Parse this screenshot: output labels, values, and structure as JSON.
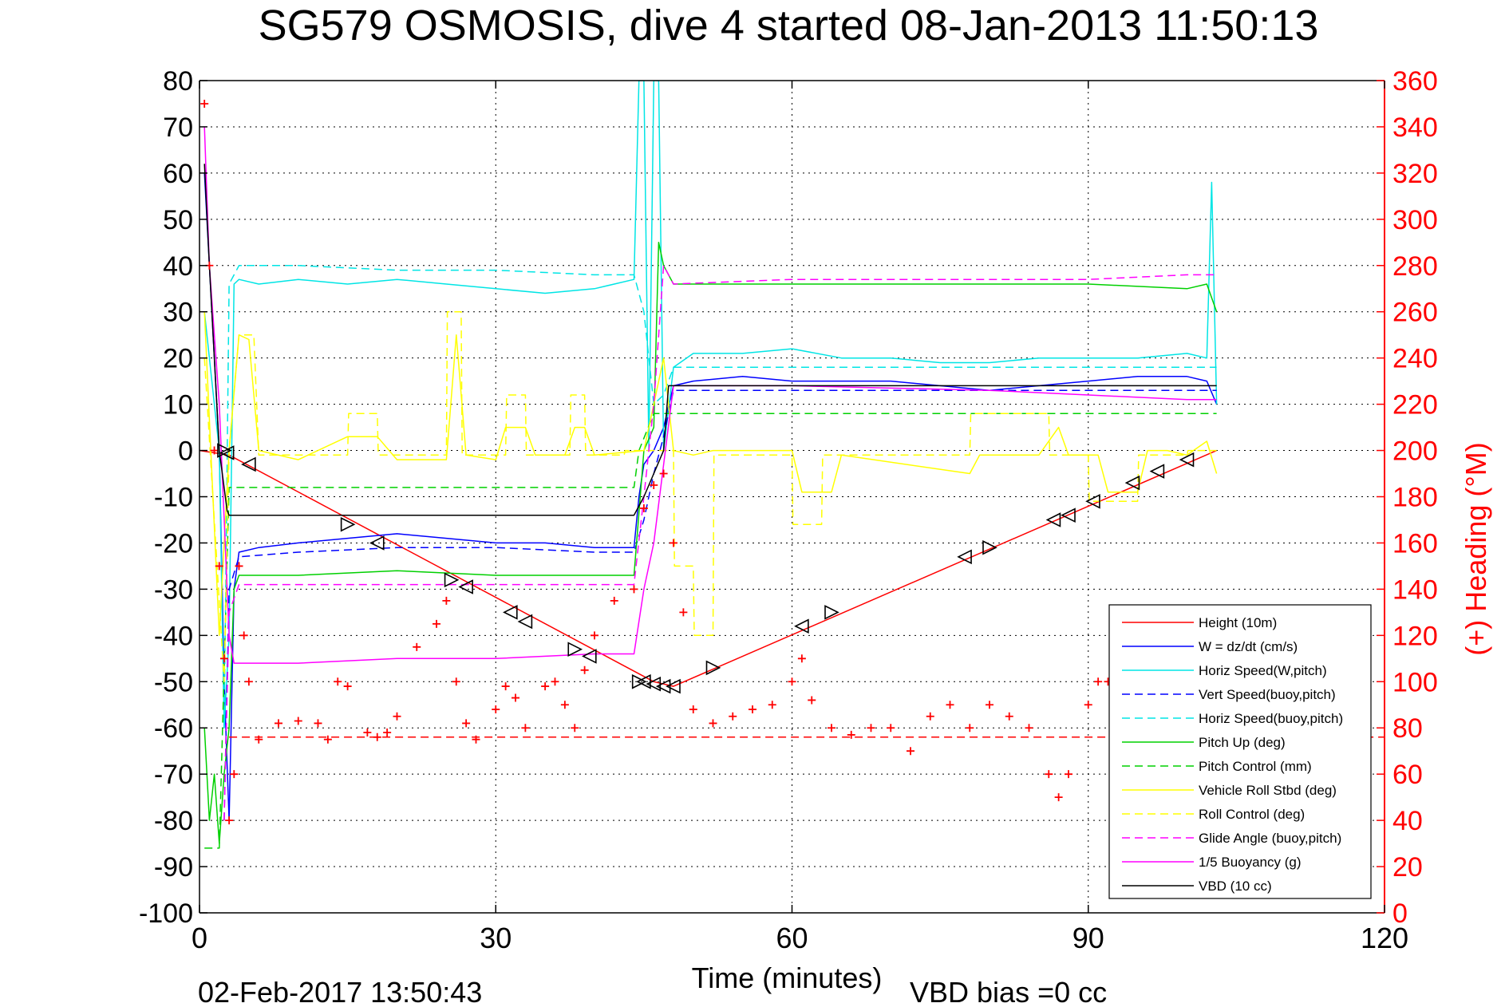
{
  "header": {
    "title": "SG579 OSMOSIS, dive 4 started 08-Jan-2013 11:50:13"
  },
  "footer": {
    "timestamp": "02-Feb-2017 13:50:43",
    "vbd_bias": "VBD bias =0 cc"
  },
  "chart_data": {
    "type": "line",
    "title": "SG579 OSMOSIS, dive 4 started 08-Jan-2013 11:50:13",
    "xlabel": "Time (minutes)",
    "ylabel": "",
    "y2label": "(+) Heading (°M)",
    "xlim": [
      0,
      120
    ],
    "ylim": [
      -100,
      80
    ],
    "y2lim": [
      0,
      360
    ],
    "xticks": [
      "0",
      "30",
      "60",
      "90",
      "120"
    ],
    "yticks": [
      "80",
      "70",
      "60",
      "50",
      "40",
      "30",
      "20",
      "10",
      "0",
      "-10",
      "-20",
      "-30",
      "-40",
      "-50",
      "-60",
      "-70",
      "-80",
      "-90",
      "-100"
    ],
    "y2ticks": [
      "360",
      "340",
      "320",
      "300",
      "280",
      "260",
      "240",
      "220",
      "200",
      "180",
      "160",
      "140",
      "120",
      "100",
      "80",
      "60",
      "40",
      "20",
      "0"
    ],
    "grid": true,
    "legend_position": "bottom-right",
    "colors": {
      "red": "#ff0000",
      "blue": "#0000ff",
      "cyan": "#00e5e5",
      "green": "#00d000",
      "yellow": "#ffff00",
      "magenta": "#ff00ff",
      "black": "#000000"
    },
    "series": [
      {
        "name": "Height (10m)",
        "color": "#ff0000",
        "dash": "solid",
        "axis": "left",
        "x": [
          0,
          3,
          46,
          48,
          103
        ],
        "y": [
          0,
          -1,
          -50,
          -51,
          0
        ]
      },
      {
        "name": "W = dz/dt (cm/s)",
        "color": "#0000ff",
        "dash": "solid",
        "axis": "left",
        "x": [
          0.5,
          1,
          1.5,
          2,
          2.5,
          3,
          3.5,
          4,
          6,
          10,
          15,
          20,
          25,
          30,
          35,
          40,
          44,
          44.5,
          45,
          46,
          47,
          48,
          50,
          55,
          60,
          65,
          70,
          75,
          80,
          85,
          90,
          95,
          100,
          102,
          103
        ],
        "y": [
          60,
          40,
          20,
          0,
          -50,
          -80,
          -30,
          -22,
          -21,
          -20,
          -19,
          -18,
          -19,
          -20,
          -20,
          -21,
          -21,
          -10,
          -3,
          0,
          5,
          14,
          15,
          16,
          15,
          15,
          15,
          14,
          13,
          14,
          15,
          16,
          16,
          15,
          10
        ]
      },
      {
        "name": "Horiz Speed(W,pitch)",
        "color": "#00e5e5",
        "dash": "solid",
        "axis": "left",
        "x": [
          0.5,
          1,
          1.5,
          2,
          2.5,
          3,
          3.5,
          4,
          6,
          10,
          15,
          20,
          25,
          30,
          35,
          40,
          44,
          44.5,
          45,
          45.5,
          46,
          46.5,
          47,
          48,
          50,
          55,
          60,
          65,
          70,
          75,
          80,
          85,
          90,
          95,
          100,
          102,
          102.5,
          103
        ],
        "y": [
          30,
          20,
          10,
          0,
          -60,
          -40,
          36,
          37,
          36,
          37,
          36,
          37,
          36,
          35,
          34,
          35,
          37,
          80,
          80,
          0,
          80,
          80,
          0,
          18,
          21,
          21,
          22,
          20,
          20,
          19,
          19,
          20,
          20,
          20,
          21,
          20,
          58,
          10
        ]
      },
      {
        "name": "Vert Speed(buoy,pitch)",
        "color": "#0000ff",
        "dash": "dashed",
        "axis": "left",
        "x": [
          2.5,
          3,
          4,
          10,
          20,
          30,
          40,
          44,
          45,
          46,
          47,
          48,
          60,
          80,
          90,
          100,
          103
        ],
        "y": [
          -80,
          -30,
          -23,
          -22,
          -21,
          -21,
          -22,
          -22,
          -15,
          -5,
          3,
          13,
          13,
          13,
          13,
          13,
          13
        ]
      },
      {
        "name": "Horiz Speed(buoy,pitch)",
        "color": "#00e5e5",
        "dash": "dashed",
        "axis": "left",
        "x": [
          2.5,
          3,
          4,
          10,
          20,
          30,
          40,
          44,
          45,
          46,
          47,
          48,
          60,
          80,
          90,
          100,
          103
        ],
        "y": [
          -60,
          36,
          40,
          40,
          39,
          39,
          38,
          38,
          30,
          10,
          12,
          18,
          18,
          18,
          18,
          18,
          18
        ]
      },
      {
        "name": "Pitch Up (deg)",
        "color": "#00d000",
        "dash": "solid",
        "axis": "left",
        "x": [
          0.5,
          1,
          1.5,
          2,
          2.5,
          3,
          3.5,
          4,
          10,
          20,
          30,
          40,
          44,
          45,
          46,
          46.5,
          47,
          48,
          60,
          70,
          80,
          90,
          100,
          102,
          103
        ],
        "y": [
          -60,
          -80,
          -70,
          -85,
          -70,
          -60,
          -30,
          -27,
          -27,
          -26,
          -27,
          -27,
          -27,
          0,
          5,
          45,
          40,
          36,
          36,
          36,
          36,
          36,
          35,
          36,
          30
        ]
      },
      {
        "name": "Pitch Control (mm)",
        "color": "#00d000",
        "dash": "dashed",
        "axis": "left",
        "x": [
          0.5,
          2,
          3,
          3.5,
          44,
          44.5,
          46,
          48,
          103
        ],
        "y": [
          -86,
          -86,
          -8,
          -8,
          -8,
          0,
          8,
          8,
          8
        ]
      },
      {
        "name": "Vehicle Roll Stbd (deg)",
        "color": "#ffff00",
        "dash": "solid",
        "axis": "left",
        "x": [
          0.5,
          2,
          3,
          4,
          5,
          6,
          10,
          15,
          18,
          20,
          25,
          26,
          27,
          30,
          31,
          33,
          34,
          37,
          38,
          39,
          40,
          45,
          46,
          47,
          48,
          50,
          52,
          53,
          60,
          61,
          64,
          65,
          78,
          79,
          81,
          85,
          87,
          88,
          90,
          91,
          92,
          95,
          96,
          98,
          100,
          102,
          103
        ],
        "y": [
          30,
          -40,
          0,
          25,
          24,
          0,
          -2,
          3,
          3,
          -2,
          -2,
          25,
          -1,
          -2,
          5,
          5,
          -1,
          -1,
          5,
          5,
          -1,
          0,
          10,
          20,
          0,
          -1,
          0,
          0,
          0,
          -9,
          -9,
          -1,
          -5,
          -1,
          -1,
          -1,
          5,
          -1,
          -1,
          -1,
          -9,
          -9,
          0,
          0,
          -1,
          2,
          -5
        ]
      },
      {
        "name": "Roll Control (deg)",
        "color": "#ffff00",
        "dash": "dashed",
        "axis": "left",
        "x": [
          0.5,
          2.5,
          3,
          4,
          5.5,
          6,
          15,
          15.1,
          18,
          18.1,
          25,
          25.1,
          26.5,
          26.6,
          31,
          31.1,
          33,
          33.1,
          37.5,
          37.6,
          39,
          39.1,
          43,
          43.1,
          48,
          48.1,
          50,
          50.1,
          52,
          52.1,
          60,
          60.1,
          63,
          63.1,
          78,
          78.1,
          86,
          86.1,
          90,
          90.1,
          91,
          91.1,
          95,
          95.1,
          100,
          100.1,
          103
        ],
        "y": [
          20,
          -50,
          0,
          25,
          25,
          -1,
          -1,
          8,
          8,
          -1,
          -1,
          30,
          30,
          -1,
          -1,
          12,
          12,
          -1,
          -1,
          12,
          12,
          -1,
          -1,
          0,
          0,
          -25,
          -25,
          -40,
          -40,
          -1,
          -1,
          -16,
          -16,
          -1,
          -1,
          8,
          8,
          -1,
          -1,
          -11,
          -11,
          -11,
          -11,
          -1,
          -1,
          0,
          0
        ]
      },
      {
        "name": "Glide Angle (buoy,pitch)",
        "color": "#ff00ff",
        "dash": "dashed",
        "axis": "left",
        "x": [
          2.5,
          3,
          4,
          10,
          20,
          30,
          40,
          44,
          45,
          46,
          47,
          48,
          60,
          80,
          90,
          100,
          103
        ],
        "y": [
          -80,
          -35,
          -29,
          -29,
          -29,
          -29,
          -29,
          -29,
          -10,
          10,
          40,
          36,
          37,
          37,
          37,
          38,
          38
        ]
      },
      {
        "name": "1/5 Buoyancy (g)",
        "color": "#ff00ff",
        "dash": "solid",
        "axis": "left",
        "x": [
          0.5,
          1,
          2,
          3,
          3.5,
          10,
          20,
          30,
          40,
          44,
          45,
          46,
          48,
          60,
          80,
          90,
          100,
          103
        ],
        "y": [
          70,
          40,
          10,
          -40,
          -46,
          -46,
          -45,
          -45,
          -44,
          -44,
          -30,
          -20,
          14,
          14,
          13,
          12,
          11,
          11
        ]
      },
      {
        "name": "VBD (10 cc)",
        "color": "#000000",
        "dash": "solid",
        "axis": "left",
        "x": [
          0.5,
          1,
          2,
          2.8,
          3,
          44,
          45,
          46,
          47,
          47.5,
          103
        ],
        "y": [
          62,
          40,
          0,
          -13,
          -14,
          -14,
          -10,
          -5,
          0,
          14,
          14
        ]
      },
      {
        "name": "(+) Heading (°M)",
        "color": "#ff0000",
        "dash": "markers-plus",
        "axis": "right",
        "show_in_legend": false,
        "x": [
          0.5,
          1,
          1.5,
          2,
          2.5,
          3,
          3.5,
          4,
          4.5,
          5,
          6,
          8,
          10,
          12,
          13,
          14,
          15,
          17,
          18,
          19,
          20,
          22,
          24,
          25,
          26,
          27,
          28,
          30,
          31,
          32,
          33,
          35,
          36,
          37,
          38,
          39,
          40,
          42,
          44,
          45,
          46,
          47,
          48,
          49,
          50,
          52,
          54,
          56,
          58,
          60,
          61,
          62,
          64,
          66,
          68,
          70,
          72,
          74,
          76,
          78,
          80,
          82,
          84,
          86,
          87,
          88,
          90,
          91,
          92,
          93
        ],
        "y": [
          350,
          280,
          200,
          150,
          110,
          40,
          60,
          150,
          120,
          100,
          75,
          82,
          83,
          82,
          75,
          100,
          98,
          78,
          76,
          78,
          85,
          115,
          125,
          135,
          100,
          82,
          75,
          88,
          98,
          93,
          80,
          98,
          100,
          90,
          80,
          105,
          120,
          135,
          140,
          175,
          185,
          190,
          160,
          130,
          88,
          82,
          85,
          88,
          90,
          100,
          110,
          92,
          80,
          77,
          80,
          80,
          70,
          85,
          90,
          80,
          90,
          85,
          80,
          60,
          50,
          60,
          90,
          100,
          100,
          85
        ]
      },
      {
        "name": "Heading reference",
        "color": "#ff0000",
        "dash": "dashed",
        "axis": "right",
        "show_in_legend": false,
        "x": [
          3,
          120
        ],
        "y": [
          76,
          76
        ]
      },
      {
        "name": "Depth markers",
        "color": "#000000",
        "dash": "markers-triangle",
        "axis": "left",
        "show_in_legend": false,
        "x": [
          2.5,
          2.8,
          5,
          15,
          18,
          25.5,
          27,
          31.5,
          33,
          38,
          39.5,
          44.5,
          45,
          46,
          47,
          48,
          52,
          61,
          64,
          77.5,
          80,
          86.5,
          88,
          90.5,
          94.5,
          97,
          100
        ],
        "y": [
          0,
          -0.5,
          -3,
          -16,
          -20,
          -28,
          -29.5,
          -35,
          -37,
          -43,
          -44.5,
          -50,
          -50,
          -50.5,
          -51,
          -51,
          -47,
          -38,
          -35,
          -23,
          -21,
          -15,
          -14,
          -11,
          -7,
          -4.5,
          -2
        ],
        "dir": [
          "r",
          "l",
          "l",
          "r",
          "l",
          "r",
          "l",
          "l",
          "l",
          "r",
          "l",
          "r",
          "l",
          "l",
          "l",
          "l",
          "r",
          "l",
          "r",
          "l",
          "r",
          "l",
          "l",
          "l",
          "l",
          "l",
          "l"
        ]
      }
    ]
  }
}
